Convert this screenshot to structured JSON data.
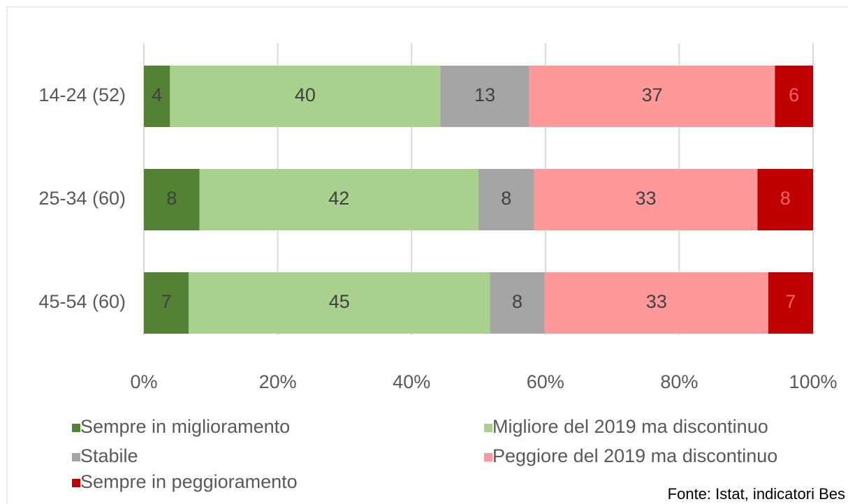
{
  "chart_data": {
    "type": "stacked_barh",
    "categories": [
      "14-24 (52)",
      "25-34 (60)",
      "45-54 (60)"
    ],
    "series": [
      {
        "name": "Sempre in miglioramento",
        "color": "#548235",
        "values": [
          3.9,
          8.3,
          6.7
        ],
        "value_labels": [
          "4",
          "8",
          "7"
        ]
      },
      {
        "name": "Migliore del 2019 ma discontinuo",
        "color": "#a9d18e",
        "values": [
          40.4,
          41.7,
          45.0
        ],
        "value_labels": [
          "40",
          "42",
          "45"
        ]
      },
      {
        "name": "Stabile",
        "color": "#a5a5a5",
        "values": [
          13.3,
          8.3,
          8.2
        ],
        "value_labels": [
          "13",
          "8",
          "8"
        ]
      },
      {
        "name": "Peggiore del 2019 ma discontinuo",
        "color": "#ff9999",
        "values": [
          36.7,
          33.4,
          33.4
        ],
        "value_labels": [
          "37",
          "33",
          "33"
        ]
      },
      {
        "name": "Sempre in peggioramento",
        "color": "#c00000",
        "values": [
          5.7,
          8.3,
          6.7
        ],
        "value_labels": [
          "6",
          "8",
          "7"
        ]
      }
    ],
    "xlim": [
      0,
      100
    ],
    "xticks": [
      {
        "value": 0,
        "label": "0%"
      },
      {
        "value": 20,
        "label": "20%"
      },
      {
        "value": 40,
        "label": "40%"
      },
      {
        "value": 60,
        "label": "60%"
      },
      {
        "value": 80,
        "label": "80%"
      },
      {
        "value": 100,
        "label": "100%"
      }
    ],
    "grid": true,
    "legend": "bottom",
    "source": "Fonte: Istat, indicatori Bes"
  }
}
